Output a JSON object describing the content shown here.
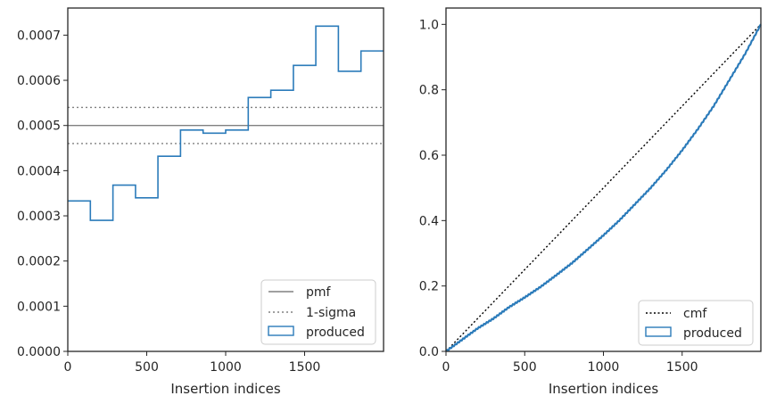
{
  "colors": {
    "produced": "#2b7bba",
    "pmf": "#808080",
    "sigma": "#808080",
    "cmf": "#000000",
    "spine": "#262626"
  },
  "chart_data": [
    {
      "type": "step",
      "xlabel": "Insertion indices",
      "ylabel": "",
      "xlim": [
        0,
        2000
      ],
      "ylim": [
        0,
        0.00076
      ],
      "xticks": [
        0,
        500,
        1000,
        1500
      ],
      "xtick_labels": [
        "0",
        "500",
        "1000",
        "1500"
      ],
      "yticks": [
        0,
        0.0001,
        0.0002,
        0.0003,
        0.0004,
        0.0005,
        0.0006,
        0.0007
      ],
      "ytick_labels": [
        "0.0000",
        "0.0001",
        "0.0002",
        "0.0003",
        "0.0004",
        "0.0005",
        "0.0006",
        "0.0007"
      ],
      "grid": false,
      "legend_position": "lower-right",
      "legend": [
        "pmf",
        "1-sigma",
        "produced"
      ],
      "pmf": 0.0005,
      "sigma_band": [
        0.00046,
        0.00054
      ],
      "bin_edges": [
        0,
        143,
        286,
        429,
        571,
        714,
        857,
        1000,
        1143,
        1286,
        1429,
        1571,
        1714,
        1857,
        2000
      ],
      "produced": [
        0.000333,
        0.00029,
        0.000368,
        0.00034,
        0.000432,
        0.00049,
        0.000483,
        0.00049,
        0.000562,
        0.000578,
        0.000633,
        0.00072,
        0.00062,
        0.000665
      ]
    },
    {
      "type": "line",
      "xlabel": "Insertion indices",
      "ylabel": "",
      "xlim": [
        0,
        2000
      ],
      "ylim": [
        0,
        1.05
      ],
      "xticks": [
        0,
        500,
        1000,
        1500
      ],
      "xtick_labels": [
        "0",
        "500",
        "1000",
        "1500"
      ],
      "yticks": [
        0,
        0.2,
        0.4,
        0.6,
        0.8,
        1.0
      ],
      "ytick_labels": [
        "0.0",
        "0.2",
        "0.4",
        "0.6",
        "0.8",
        "1.0"
      ],
      "grid": false,
      "legend_position": "lower-right",
      "legend": [
        "cmf",
        "produced"
      ],
      "cmf": {
        "x": [
          0,
          2000
        ],
        "y": [
          0,
          1
        ]
      },
      "produced": {
        "x": [
          0,
          100,
          200,
          300,
          400,
          500,
          600,
          700,
          800,
          900,
          1000,
          1100,
          1200,
          1300,
          1400,
          1500,
          1600,
          1700,
          1800,
          1900,
          2000
        ],
        "y": [
          0,
          0.035,
          0.07,
          0.1,
          0.135,
          0.165,
          0.197,
          0.233,
          0.27,
          0.312,
          0.355,
          0.4,
          0.45,
          0.5,
          0.555,
          0.615,
          0.68,
          0.75,
          0.83,
          0.91,
          1.0
        ]
      }
    }
  ]
}
